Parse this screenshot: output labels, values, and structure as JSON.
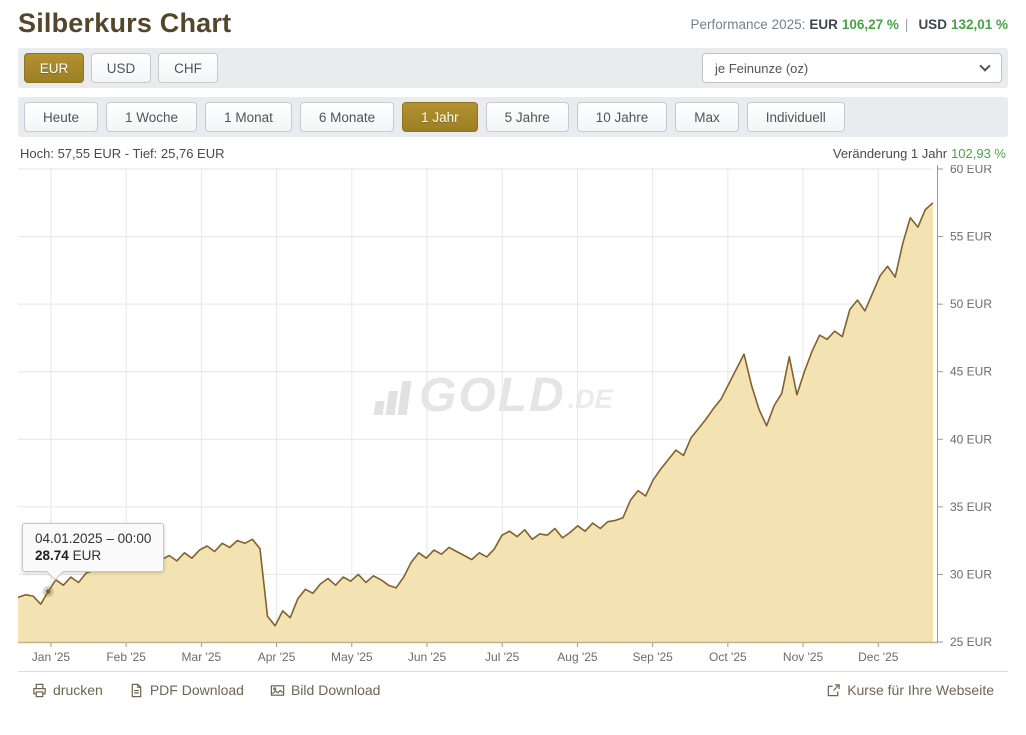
{
  "header": {
    "title": "Silberkurs Chart",
    "performance_label": "Performance 2025:",
    "eur_label": "EUR",
    "eur_value": "106,27 %",
    "separator": "|",
    "usd_label": "USD",
    "usd_value": "132,01 %"
  },
  "currency_toolbar": {
    "buttons": [
      {
        "label": "EUR",
        "active": true
      },
      {
        "label": "USD",
        "active": false
      },
      {
        "label": "CHF",
        "active": false
      }
    ],
    "unit_select_value": "je Feinunze (oz)"
  },
  "range_toolbar": {
    "buttons": [
      {
        "label": "Heute",
        "active": false
      },
      {
        "label": "1 Woche",
        "active": false
      },
      {
        "label": "1 Monat",
        "active": false
      },
      {
        "label": "6 Monate",
        "active": false
      },
      {
        "label": "1 Jahr",
        "active": true
      },
      {
        "label": "5 Jahre",
        "active": false
      },
      {
        "label": "10 Jahre",
        "active": false
      },
      {
        "label": "Max",
        "active": false
      },
      {
        "label": "Individuell",
        "active": false
      }
    ]
  },
  "chart_info": {
    "high_low": "Hoch: 57,55 EUR - Tief: 25,76 EUR",
    "change_label": "Veränderung 1 Jahr",
    "change_value": "102,93 %"
  },
  "tooltip": {
    "date": "04.01.2025 – 00:00",
    "value": "28.74",
    "unit": "EUR"
  },
  "watermark": {
    "text": "GOLD",
    "suffix": ".DE"
  },
  "chart_data": {
    "type": "area",
    "title": "Silberkurs 1 Jahr in EUR je Feinunze (oz)",
    "unit": "EUR",
    "ylim": [
      25,
      60
    ],
    "high": 57.55,
    "low": 25.76,
    "change_1y_percent": "102,93 %",
    "x_tick_labels": [
      "Jan '25",
      "Feb '25",
      "Mar '25",
      "Apr '25",
      "May '25",
      "Jun '25",
      "Jul '25",
      "Aug '25",
      "Sep '25",
      "Oct '25",
      "Nov '25",
      "Dec '25"
    ],
    "y_tick_labels": [
      "25 EUR",
      "30 EUR",
      "35 EUR",
      "40 EUR",
      "45 EUR",
      "50 EUR",
      "55 EUR",
      "60 EUR"
    ],
    "grid": true,
    "legend": false,
    "values": [
      28.3,
      28.5,
      28.4,
      27.8,
      28.74,
      29.6,
      29.2,
      29.8,
      29.4,
      30.1,
      30.3,
      30.6,
      31.0,
      30.4,
      30.9,
      31.3,
      30.8,
      31.2,
      31.5,
      31.1,
      31.4,
      31.0,
      31.6,
      31.2,
      31.8,
      32.1,
      31.7,
      32.3,
      32.0,
      32.5,
      32.3,
      32.6,
      31.9,
      26.9,
      26.2,
      27.3,
      26.8,
      28.2,
      28.9,
      28.6,
      29.3,
      29.7,
      29.2,
      29.8,
      29.5,
      30.0,
      29.4,
      29.9,
      29.6,
      29.2,
      29.0,
      29.8,
      30.9,
      31.6,
      31.2,
      31.8,
      31.5,
      32.0,
      31.7,
      31.4,
      31.1,
      31.6,
      31.3,
      31.9,
      32.9,
      33.2,
      32.8,
      33.3,
      32.6,
      33.0,
      32.9,
      33.4,
      32.7,
      33.1,
      33.6,
      33.2,
      33.8,
      33.4,
      33.9,
      34.0,
      34.2,
      35.5,
      36.2,
      35.8,
      37.0,
      37.8,
      38.5,
      39.2,
      38.8,
      40.1,
      40.8,
      41.5,
      42.3,
      43.0,
      44.1,
      45.2,
      46.3,
      44.0,
      42.2,
      41.0,
      42.5,
      43.4,
      46.1,
      43.3,
      45.0,
      46.5,
      47.7,
      47.4,
      48.0,
      47.6,
      49.6,
      50.3,
      49.5,
      50.8,
      52.1,
      52.8,
      52.0,
      54.5,
      56.4,
      55.7,
      57.0,
      57.5
    ],
    "highlight_point": {
      "index": 4,
      "date": "04.01.2025 – 00:00",
      "value": 28.74
    }
  },
  "footer": {
    "links": [
      {
        "label": "drucken",
        "icon": "printer-icon"
      },
      {
        "label": "PDF Download",
        "icon": "pdf-file-icon"
      },
      {
        "label": "Bild Download",
        "icon": "image-icon"
      }
    ],
    "right_link": {
      "label": "Kurse für Ihre Webseite",
      "icon": "external-link-icon"
    }
  },
  "colors": {
    "accent_gold": "#a8892d",
    "title_brown": "#54462a",
    "positive_green": "#47a347",
    "area_fill": "#f4e3b2",
    "line": "#82622a",
    "grid": "#e6e6e6",
    "bottom_axis": "#c4b285",
    "right_axis": "#999999",
    "axis_text": "#6b6b6b",
    "toolbar_bg": "#e9ebee"
  }
}
